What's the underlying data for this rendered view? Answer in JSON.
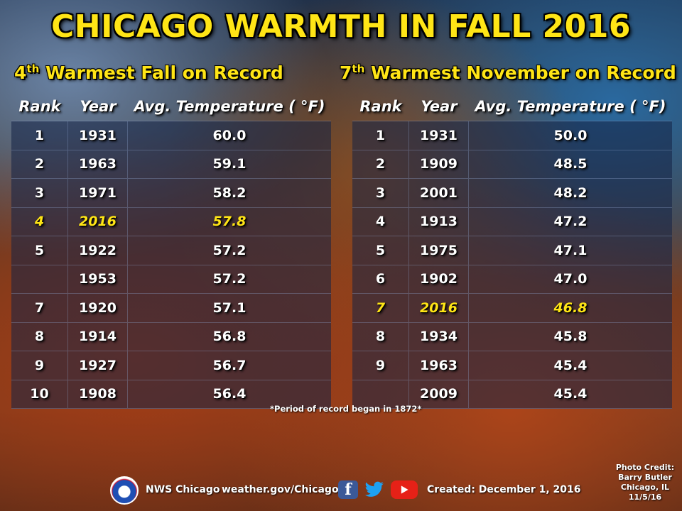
{
  "title": "CHICAGO WARMTH IN FALL 2016",
  "left": {
    "subtitle_rank": "4",
    "subtitle_suffix": "th",
    "subtitle_rest": " Warmest Fall on Record",
    "headers": [
      "Rank",
      "Year",
      "Avg. Temperature ( °F)"
    ],
    "rows": [
      {
        "rank": "1",
        "year": "1931",
        "temp": "60.0",
        "highlight": false
      },
      {
        "rank": "2",
        "year": "1963",
        "temp": "59.1",
        "highlight": false
      },
      {
        "rank": "3",
        "year": "1971",
        "temp": "58.2",
        "highlight": false
      },
      {
        "rank": "4",
        "year": "2016",
        "temp": "57.8",
        "highlight": true
      },
      {
        "rank": "5",
        "year": "1922",
        "temp": "57.2",
        "highlight": false
      },
      {
        "rank": "",
        "year": "1953",
        "temp": "57.2",
        "highlight": false
      },
      {
        "rank": "7",
        "year": "1920",
        "temp": "57.1",
        "highlight": false
      },
      {
        "rank": "8",
        "year": "1914",
        "temp": "56.8",
        "highlight": false
      },
      {
        "rank": "9",
        "year": "1927",
        "temp": "56.7",
        "highlight": false
      },
      {
        "rank": "10",
        "year": "1908",
        "temp": "56.4",
        "highlight": false
      }
    ]
  },
  "right": {
    "subtitle_rank": "7",
    "subtitle_suffix": "th",
    "subtitle_rest": " Warmest November on Record",
    "headers": [
      "Rank",
      "Year",
      "Avg. Temperature ( °F)"
    ],
    "rows": [
      {
        "rank": "1",
        "year": "1931",
        "temp": "50.0",
        "highlight": false
      },
      {
        "rank": "2",
        "year": "1909",
        "temp": "48.5",
        "highlight": false
      },
      {
        "rank": "3",
        "year": "2001",
        "temp": "48.2",
        "highlight": false
      },
      {
        "rank": "4",
        "year": "1913",
        "temp": "47.2",
        "highlight": false
      },
      {
        "rank": "5",
        "year": "1975",
        "temp": "47.1",
        "highlight": false
      },
      {
        "rank": "6",
        "year": "1902",
        "temp": "47.0",
        "highlight": false
      },
      {
        "rank": "7",
        "year": "2016",
        "temp": "46.8",
        "highlight": true
      },
      {
        "rank": "8",
        "year": "1934",
        "temp": "45.8",
        "highlight": false
      },
      {
        "rank": "9",
        "year": "1963",
        "temp": "45.4",
        "highlight": false
      },
      {
        "rank": "",
        "year": "2009",
        "temp": "45.4",
        "highlight": false
      }
    ]
  },
  "note": "*Period of record began in 1872*",
  "footer": {
    "org": "NWS Chicago",
    "url": "weather.gov/Chicago",
    "created": "Created: December 1, 2016",
    "icons": [
      "nws-logo-icon",
      "facebook-icon",
      "twitter-icon",
      "youtube-icon"
    ]
  },
  "credit": [
    "Photo Credit:",
    "Barry Butler",
    "Chicago, IL",
    "11/5/16"
  ],
  "colors": {
    "title": "#ffe516",
    "highlight": "#ffe516",
    "text": "#ffffff",
    "row_bg": "rgba(20,35,70,0.55)"
  }
}
